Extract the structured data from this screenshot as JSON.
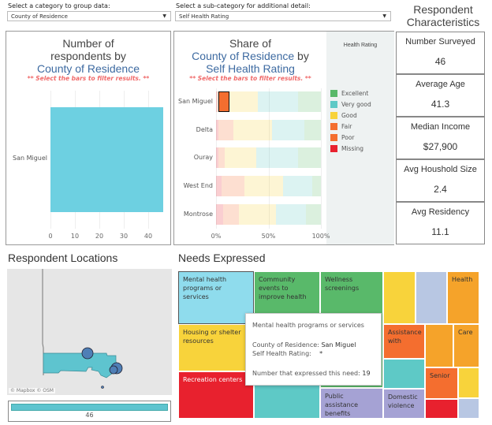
{
  "filters": {
    "group_label": "Select a category to group data:",
    "group_value": "County of Residence",
    "sub_label": "Select a sub-category for additional detail:",
    "sub_value": "Self Health Rating"
  },
  "count_chart": {
    "title1": "Number of",
    "title2": "respondents by",
    "title3": "County of Residence",
    "hint": "** Select the bars to filter results. **"
  },
  "share_chart": {
    "title1": "Share of",
    "title2a": "County of Residence",
    "title2b": "by",
    "title3": "Self Health Rating",
    "hint": "** Select the bars to filter results. **",
    "legend_title": "Health Rating"
  },
  "chart_data": [
    {
      "type": "bar",
      "title": "Number of respondents by County of Residence",
      "categories": [
        "San Miguel"
      ],
      "values": [
        46
      ],
      "xlim": [
        0,
        46
      ],
      "xticks": [
        "0",
        "10",
        "20",
        "30",
        "40"
      ]
    },
    {
      "type": "bar",
      "stacked": true,
      "title": "Share of County of Residence by Self Health Rating",
      "categories": [
        "San Miguel",
        "Delta",
        "Ouray",
        "West End",
        "Montrose"
      ],
      "xticks": [
        "0%",
        "50%",
        "100%"
      ],
      "series": [
        {
          "name": "Missing",
          "color": "#e8212e",
          "values": [
            1,
            2.5,
            2,
            5,
            7
          ]
        },
        {
          "name": "Poor",
          "color": "#f46e2f",
          "values": [
            1,
            1,
            1,
            1,
            1
          ]
        },
        {
          "name": "Fair",
          "color": "#f46e2f",
          "values": [
            11,
            13,
            5,
            21,
            14
          ]
        },
        {
          "name": "Good",
          "color": "#f8d33b",
          "values": [
            27,
            37,
            30,
            37,
            35
          ]
        },
        {
          "name": "Very good",
          "color": "#5ec9c6",
          "values": [
            38,
            31,
            40,
            28,
            29
          ]
        },
        {
          "name": "Excellent",
          "color": "#59b96a",
          "values": [
            22,
            15.5,
            22,
            8,
            14
          ]
        }
      ],
      "legend": [
        "Excellent",
        "Very good",
        "Good",
        "Fair",
        "Poor",
        "Missing"
      ],
      "highlight": {
        "category": "San Miguel",
        "series": "Fair"
      }
    }
  ],
  "characteristics": {
    "title": "Respondent Characteristics",
    "items": [
      {
        "label": "Number Surveyed",
        "value": "46"
      },
      {
        "label": "Average Age",
        "value": "41.3"
      },
      {
        "label": "Median Income",
        "value": "$27,900"
      },
      {
        "label": "Avg Houshold Size",
        "value": "2.4"
      },
      {
        "label": "Avg Residency",
        "value": "11.1"
      }
    ]
  },
  "map": {
    "title": "Respondent Locations",
    "attribution": "© Mapbox © OSM",
    "total": "46"
  },
  "needs": {
    "title": "Needs Expressed",
    "cells": [
      "Mental health programs or services",
      "Community events to improve health",
      "Wellness screenings",
      "Health",
      "Housing or shelter resources",
      "Recreation centers",
      "Assistance with",
      "Care",
      "Senior",
      "Public assistance benefits",
      "Domestic violence"
    ],
    "tooltip": {
      "title": "Mental health programs or services",
      "l1": "County of Residence:",
      "v1": "San Miguel",
      "l2": "Self Health Rating:",
      "v2": "*",
      "l3": "Number that expressed this need:",
      "v3": "19"
    }
  }
}
